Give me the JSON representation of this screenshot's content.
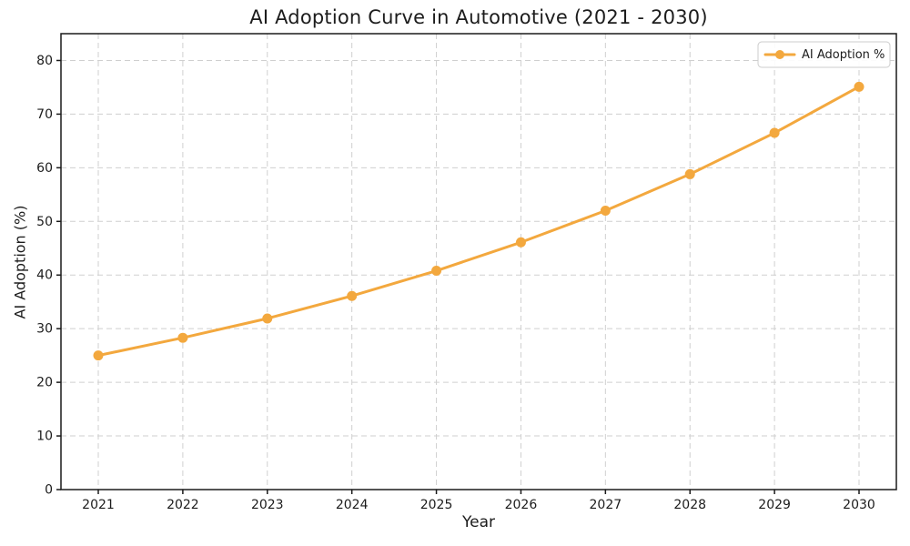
{
  "chart_data": {
    "type": "line",
    "title": "AI Adoption Curve in Automotive (2021 - 2030)",
    "xlabel": "Year",
    "ylabel": "AI Adoption (%)",
    "categories": [
      "2021",
      "2022",
      "2023",
      "2024",
      "2025",
      "2026",
      "2027",
      "2028",
      "2029",
      "2030"
    ],
    "series": [
      {
        "name": "AI Adoption %",
        "values": [
          25.0,
          28.3,
          31.9,
          36.1,
          40.8,
          46.1,
          52.0,
          58.8,
          66.5,
          75.1
        ],
        "color": "#F3A83E",
        "marker": "circle",
        "line_style": "solid"
      }
    ],
    "ylim": [
      0,
      85
    ],
    "yticks": [
      0,
      10,
      20,
      30,
      40,
      50,
      60,
      70,
      80
    ],
    "grid": {
      "visible": true,
      "style": "dashed",
      "color": "#cfcfcf"
    },
    "legend": {
      "position": "upper right",
      "entries": [
        "AI Adoption %"
      ]
    }
  },
  "colors": {
    "accent": "#F3A83E",
    "grid": "#cfcfcf",
    "spine": "#1a1a1a",
    "text": "#1c1c1c",
    "legend_border": "#cccccc",
    "legend_bg": "#ffffff"
  }
}
